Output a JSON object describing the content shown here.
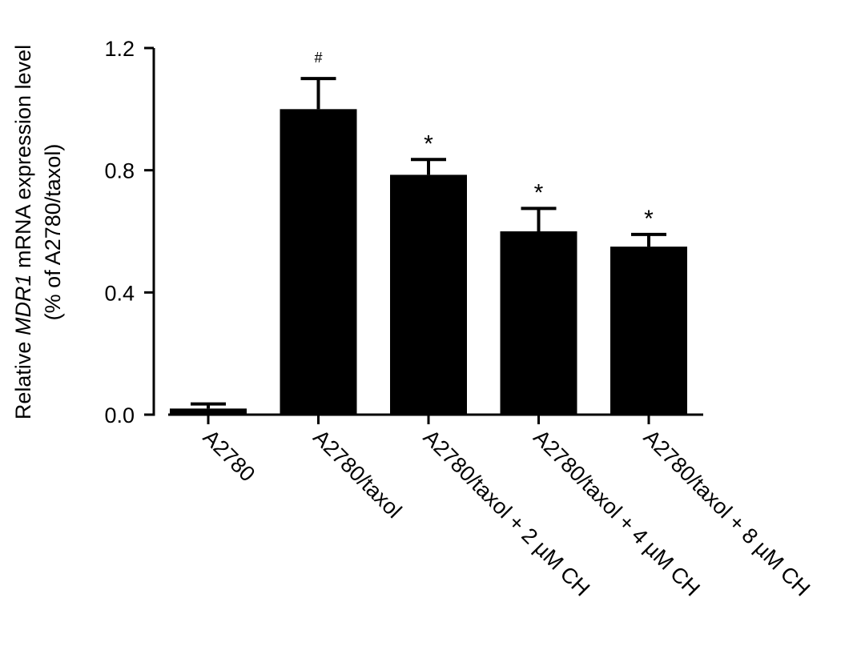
{
  "chart_data": {
    "type": "bar",
    "title": "",
    "xlabel": "",
    "ylabel_line1_pre": "Relative ",
    "ylabel_line1_gene": "MDR1",
    "ylabel_line1_post": " mRNA expression level",
    "ylabel_line2": "(% of A2780/taxol)",
    "ylim": [
      0,
      1.2
    ],
    "yticks": [
      0.0,
      0.4,
      0.8,
      1.2
    ],
    "ytick_labels": [
      "0.0",
      "0.4",
      "0.8",
      "1.2"
    ],
    "categories": [
      "A2780",
      "A2780/taxol",
      "A2780/taxol + 2 µM CH",
      "A2780/taxol + 4 µM CH",
      "A2780/taxol + 8 µM CH"
    ],
    "values": [
      0.02,
      1.0,
      0.785,
      0.6,
      0.55
    ],
    "errors": [
      0.015,
      0.1,
      0.05,
      0.075,
      0.04
    ],
    "annotations": [
      "",
      "#",
      "*",
      "*",
      "*"
    ],
    "bar_color": "#000000",
    "grid": false,
    "legend": "none"
  }
}
